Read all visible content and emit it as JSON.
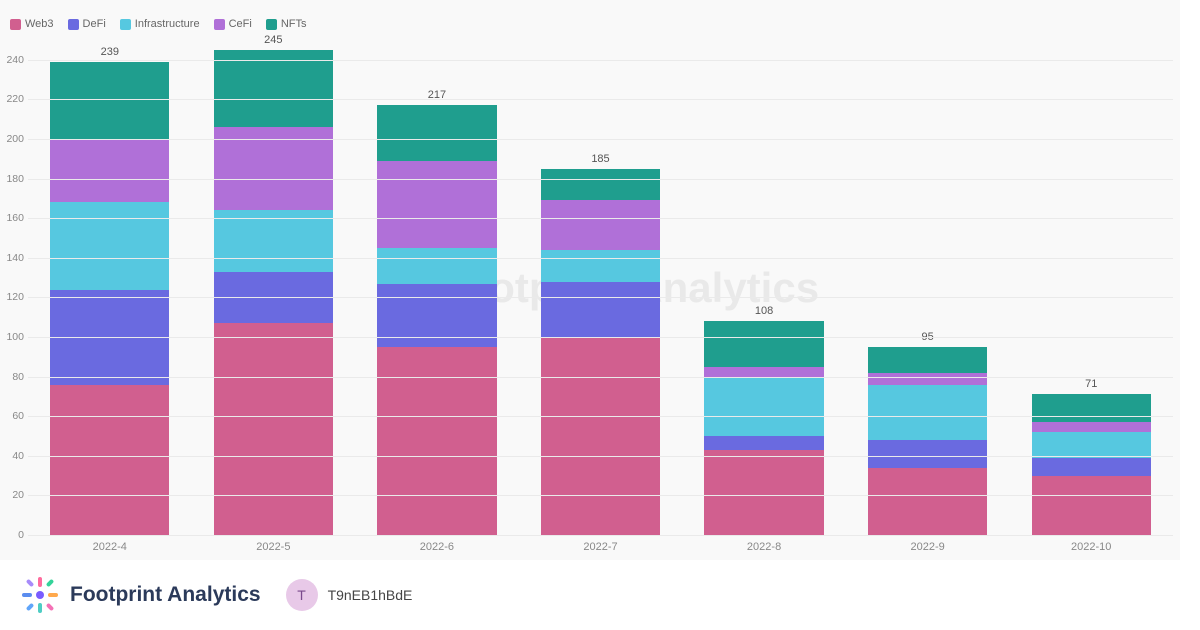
{
  "chart": {
    "type": "stacked-bar",
    "background_color": "#f9f9f9",
    "grid_color": "#eaeaea",
    "label_color": "#888888",
    "label_fontsize": 11,
    "ylim": [
      0,
      250
    ],
    "ytick_step": 20,
    "categories": [
      "2022-4",
      "2022-5",
      "2022-6",
      "2022-7",
      "2022-8",
      "2022-9",
      "2022-10"
    ],
    "series": [
      {
        "name": "Web3",
        "color": "#d15f8f"
      },
      {
        "name": "DeFi",
        "color": "#6a6ae0"
      },
      {
        "name": "Infrastructure",
        "color": "#56c8e0"
      },
      {
        "name": "CeFi",
        "color": "#b070d8"
      },
      {
        "name": "NFTs",
        "color": "#1f9e8e"
      }
    ],
    "values": [
      [
        76,
        48,
        44,
        32,
        39
      ],
      [
        107,
        26,
        31,
        42,
        39
      ],
      [
        95,
        32,
        18,
        44,
        28
      ],
      [
        100,
        28,
        16,
        25,
        16
      ],
      [
        43,
        7,
        30,
        5,
        23
      ],
      [
        34,
        14,
        28,
        6,
        13
      ],
      [
        30,
        9,
        13,
        5,
        14
      ]
    ],
    "totals": [
      239,
      245,
      217,
      185,
      108,
      95,
      71
    ],
    "bar_width_ratio": 0.73
  },
  "watermark": {
    "text": "Footprint Analytics"
  },
  "footer": {
    "brand": "Footprint Analytics",
    "brand_color": "#2b3a5a",
    "user_initial": "T",
    "username": "T9nEB1hBdE"
  }
}
